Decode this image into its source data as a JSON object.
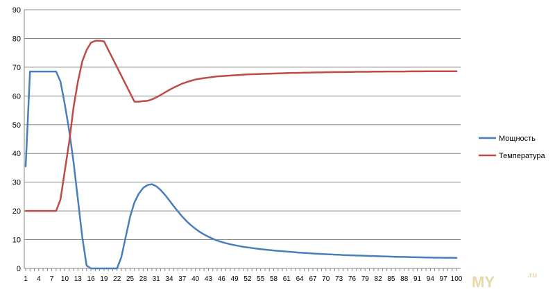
{
  "watermark": {
    "main": "MY",
    "suffix": ".ru"
  },
  "chart_data": {
    "type": "line",
    "xlabel": "",
    "ylabel": "",
    "ylim": [
      0,
      90
    ],
    "yticks": [
      0,
      10,
      20,
      30,
      40,
      50,
      60,
      70,
      80,
      90
    ],
    "xlim": [
      1,
      100
    ],
    "xtick_labels": [
      1,
      4,
      7,
      10,
      13,
      16,
      19,
      22,
      25,
      28,
      31,
      34,
      37,
      40,
      43,
      46,
      49,
      52,
      55,
      58,
      61,
      64,
      67,
      70,
      73,
      76,
      79,
      82,
      85,
      88,
      91,
      94,
      97,
      100
    ],
    "grid": "horizontal",
    "legend_position": "right",
    "series": [
      {
        "name": "Мощность",
        "color": "#4a7ebb",
        "points": [
          [
            1,
            35.5
          ],
          [
            2,
            68.5
          ],
          [
            3,
            68.5
          ],
          [
            4,
            68.5
          ],
          [
            5,
            68.5
          ],
          [
            6,
            68.5
          ],
          [
            7,
            68.5
          ],
          [
            8,
            68.5
          ],
          [
            9,
            65
          ],
          [
            10,
            57
          ],
          [
            11,
            48
          ],
          [
            12,
            37
          ],
          [
            13,
            24
          ],
          [
            14,
            11
          ],
          [
            15,
            1
          ],
          [
            16,
            0
          ],
          [
            17,
            0
          ],
          [
            18,
            0
          ],
          [
            19,
            0
          ],
          [
            20,
            0
          ],
          [
            21,
            0
          ],
          [
            22,
            0
          ],
          [
            23,
            4
          ],
          [
            24,
            11
          ],
          [
            25,
            18
          ],
          [
            26,
            23
          ],
          [
            27,
            26
          ],
          [
            28,
            28
          ],
          [
            29,
            29
          ],
          [
            30,
            29.3
          ],
          [
            31,
            28.6
          ],
          [
            32,
            27.3
          ],
          [
            33,
            25.6
          ],
          [
            34,
            23.7
          ],
          [
            35,
            21.7
          ],
          [
            36,
            19.8
          ],
          [
            37,
            18
          ],
          [
            38,
            16.4
          ],
          [
            39,
            15
          ],
          [
            40,
            13.8
          ],
          [
            41,
            12.7
          ],
          [
            42,
            11.8
          ],
          [
            43,
            11
          ],
          [
            44,
            10.3
          ],
          [
            45,
            9.7
          ],
          [
            46,
            9.2
          ],
          [
            47,
            8.8
          ],
          [
            48,
            8.4
          ],
          [
            49,
            8.1
          ],
          [
            50,
            7.8
          ],
          [
            51,
            7.5
          ],
          [
            52,
            7.3
          ],
          [
            53,
            7.1
          ],
          [
            54,
            6.9
          ],
          [
            55,
            6.7
          ],
          [
            56,
            6.55
          ],
          [
            57,
            6.4
          ],
          [
            58,
            6.25
          ],
          [
            59,
            6.1
          ],
          [
            60,
            6
          ],
          [
            61,
            5.85
          ],
          [
            62,
            5.75
          ],
          [
            63,
            5.6
          ],
          [
            64,
            5.5
          ],
          [
            65,
            5.4
          ],
          [
            66,
            5.3
          ],
          [
            67,
            5.2
          ],
          [
            68,
            5.1
          ],
          [
            69,
            5.05
          ],
          [
            70,
            4.95
          ],
          [
            71,
            4.9
          ],
          [
            72,
            4.8
          ],
          [
            73,
            4.75
          ],
          [
            74,
            4.65
          ],
          [
            75,
            4.6
          ],
          [
            76,
            4.55
          ],
          [
            77,
            4.5
          ],
          [
            78,
            4.45
          ],
          [
            79,
            4.4
          ],
          [
            80,
            4.35
          ],
          [
            81,
            4.3
          ],
          [
            82,
            4.25
          ],
          [
            83,
            4.2
          ],
          [
            84,
            4.15
          ],
          [
            85,
            4.1
          ],
          [
            86,
            4.05
          ],
          [
            87,
            4
          ],
          [
            88,
            4
          ],
          [
            89,
            3.95
          ],
          [
            90,
            3.9
          ],
          [
            91,
            3.9
          ],
          [
            92,
            3.85
          ],
          [
            93,
            3.8
          ],
          [
            94,
            3.8
          ],
          [
            95,
            3.75
          ],
          [
            96,
            3.75
          ],
          [
            97,
            3.7
          ],
          [
            98,
            3.7
          ],
          [
            99,
            3.7
          ],
          [
            100,
            3.65
          ]
        ]
      },
      {
        "name": "Температура",
        "color": "#be4b48",
        "points": [
          [
            1,
            20
          ],
          [
            2,
            20
          ],
          [
            3,
            20
          ],
          [
            4,
            20
          ],
          [
            5,
            20
          ],
          [
            6,
            20
          ],
          [
            7,
            20
          ],
          [
            8,
            20
          ],
          [
            9,
            24
          ],
          [
            10,
            34
          ],
          [
            11,
            44
          ],
          [
            12,
            56
          ],
          [
            13,
            65
          ],
          [
            14,
            72
          ],
          [
            15,
            76
          ],
          [
            16,
            78.5
          ],
          [
            17,
            79.2
          ],
          [
            18,
            79.2
          ],
          [
            19,
            79
          ],
          [
            20,
            76
          ],
          [
            21,
            73
          ],
          [
            22,
            70
          ],
          [
            23,
            67
          ],
          [
            24,
            64
          ],
          [
            25,
            61
          ],
          [
            26,
            58
          ],
          [
            27,
            58
          ],
          [
            28,
            58.2
          ],
          [
            29,
            58.3
          ],
          [
            30,
            58.8
          ],
          [
            31,
            59.5
          ],
          [
            32,
            60.3
          ],
          [
            33,
            61.2
          ],
          [
            34,
            62.1
          ],
          [
            35,
            62.9
          ],
          [
            36,
            63.6
          ],
          [
            37,
            64.3
          ],
          [
            38,
            64.8
          ],
          [
            39,
            65.3
          ],
          [
            40,
            65.7
          ],
          [
            41,
            66
          ],
          [
            42,
            66.2
          ],
          [
            43,
            66.4
          ],
          [
            44,
            66.6
          ],
          [
            45,
            66.8
          ],
          [
            46,
            66.9
          ],
          [
            47,
            67
          ],
          [
            48,
            67.1
          ],
          [
            49,
            67.2
          ],
          [
            50,
            67.3
          ],
          [
            51,
            67.4
          ],
          [
            52,
            67.5
          ],
          [
            53,
            67.55
          ],
          [
            54,
            67.6
          ],
          [
            55,
            67.65
          ],
          [
            56,
            67.7
          ],
          [
            57,
            67.75
          ],
          [
            58,
            67.8
          ],
          [
            59,
            67.85
          ],
          [
            60,
            67.9
          ],
          [
            61,
            67.95
          ],
          [
            62,
            68
          ],
          [
            63,
            68
          ],
          [
            64,
            68.05
          ],
          [
            65,
            68.1
          ],
          [
            66,
            68.1
          ],
          [
            67,
            68.15
          ],
          [
            68,
            68.2
          ],
          [
            69,
            68.2
          ],
          [
            70,
            68.25
          ],
          [
            71,
            68.25
          ],
          [
            72,
            68.3
          ],
          [
            73,
            68.3
          ],
          [
            74,
            68.3
          ],
          [
            75,
            68.35
          ],
          [
            76,
            68.35
          ],
          [
            77,
            68.4
          ],
          [
            78,
            68.4
          ],
          [
            79,
            68.4
          ],
          [
            80,
            68.4
          ],
          [
            81,
            68.45
          ],
          [
            82,
            68.45
          ],
          [
            83,
            68.45
          ],
          [
            84,
            68.5
          ],
          [
            85,
            68.5
          ],
          [
            86,
            68.5
          ],
          [
            87,
            68.5
          ],
          [
            88,
            68.5
          ],
          [
            89,
            68.55
          ],
          [
            90,
            68.55
          ],
          [
            91,
            68.55
          ],
          [
            92,
            68.55
          ],
          [
            93,
            68.6
          ],
          [
            94,
            68.6
          ],
          [
            95,
            68.6
          ],
          [
            96,
            68.6
          ],
          [
            97,
            68.6
          ],
          [
            98,
            68.6
          ],
          [
            99,
            68.6
          ],
          [
            100,
            68.6
          ]
        ]
      }
    ]
  }
}
